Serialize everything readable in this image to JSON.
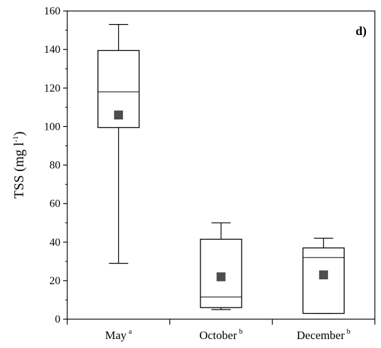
{
  "chart_data": {
    "type": "box",
    "panel_label": "d)",
    "ylabel_main": "TSS (mg l",
    "ylabel_sup": "-1",
    "ylabel_close": ")",
    "ylim": [
      0,
      160
    ],
    "yticks": [
      0,
      20,
      40,
      60,
      80,
      100,
      120,
      140,
      160
    ],
    "categories": [
      {
        "label": "May",
        "sup": "a"
      },
      {
        "label": "October",
        "sup": "b"
      },
      {
        "label": "December",
        "sup": "b"
      }
    ],
    "boxes": [
      {
        "whisker_low": 29,
        "q1": 99.5,
        "median": 118,
        "q3": 139.5,
        "whisker_high": 153,
        "mean": 106
      },
      {
        "whisker_low": 5,
        "q1": 6,
        "median": 11.5,
        "q3": 41.5,
        "whisker_high": 50,
        "mean": 22
      },
      {
        "whisker_low": 3,
        "q1": 3,
        "median": 32,
        "q3": 37,
        "whisker_high": 42,
        "mean": 23
      }
    ],
    "grid": false,
    "colors": {
      "box": "#000000",
      "mean_marker": "#4d4d4d"
    }
  }
}
